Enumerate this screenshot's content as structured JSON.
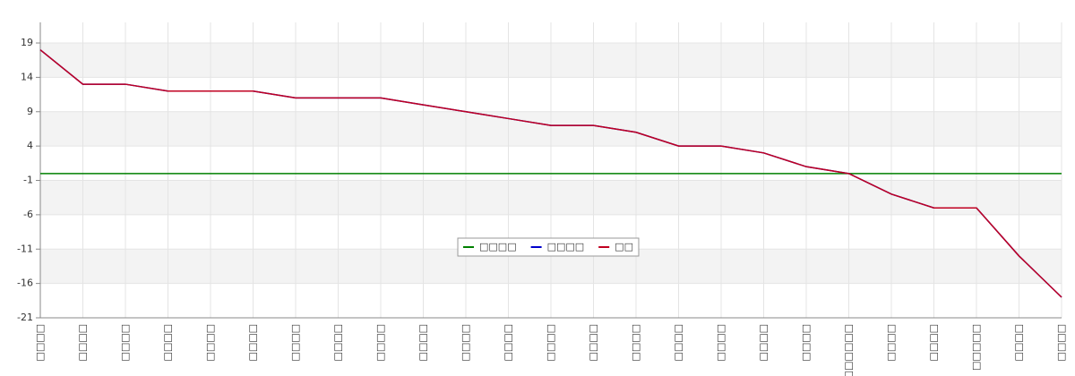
{
  "chart_data": {
    "type": "line",
    "categories": [
      "□□□□",
      "□□□□",
      "□□□□",
      "□□□□",
      "□□□□",
      "□□□□",
      "□□□□",
      "□□□□",
      "□□□□",
      "□□□□",
      "□□□□",
      "□□□□",
      "□□□□",
      "□□□□",
      "□□□□",
      "□□□□",
      "□□□□",
      "□□□□",
      "□□□□",
      "□□□□□□",
      "□□□□",
      "□□□□",
      "□□□□□",
      "□□□□",
      "□□□□"
    ],
    "series": [
      {
        "name": "□□□□",
        "color": "#008000",
        "values": [
          0,
          0,
          0,
          0,
          0,
          0,
          0,
          0,
          0,
          0,
          0,
          0,
          0,
          0,
          0,
          0,
          0,
          0,
          0,
          0,
          0,
          0,
          0,
          0,
          0
        ]
      },
      {
        "name": "□□□□",
        "color": "#0000cc",
        "values": [
          18,
          13,
          13,
          12,
          12,
          12,
          11,
          11,
          11,
          10,
          9,
          8,
          7,
          7,
          6,
          4,
          4,
          3,
          1,
          0,
          -3,
          -5,
          -5,
          -12,
          -18
        ]
      },
      {
        "name": "□□",
        "color": "#c00020",
        "values": [
          18,
          13,
          13,
          12,
          12,
          12,
          11,
          11,
          11,
          10,
          9,
          8,
          7,
          7,
          6,
          4,
          4,
          3,
          1,
          0,
          -3,
          -5,
          -5,
          -12,
          -18
        ]
      }
    ],
    "ylim": [
      -21,
      22
    ],
    "yticks": [
      -21,
      -16,
      -11,
      -6,
      -1,
      4,
      9,
      14,
      19
    ],
    "grid": true,
    "bands": true,
    "legend": "center"
  }
}
